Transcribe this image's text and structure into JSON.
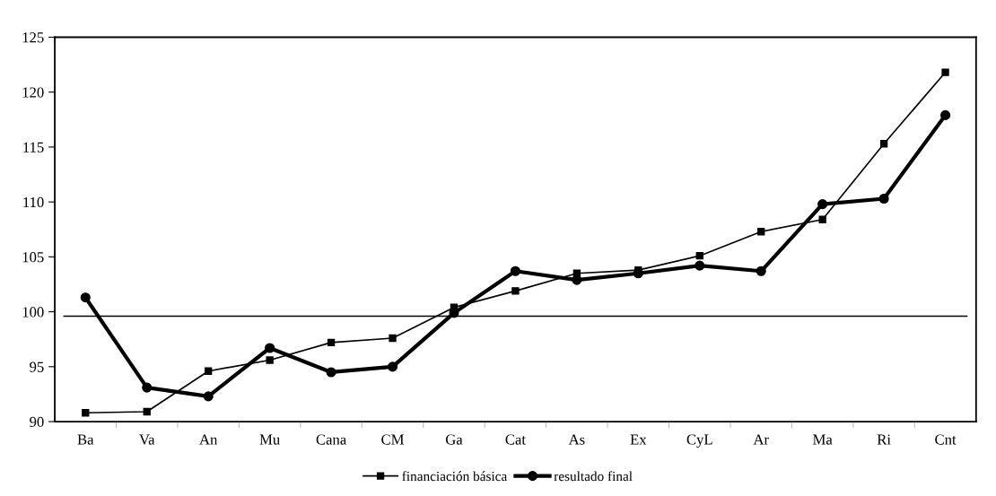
{
  "chart_data": {
    "type": "line",
    "categories": [
      "Ba",
      "Va",
      "An",
      "Mu",
      "Cana",
      "CM",
      "Ga",
      "Cat",
      "As",
      "Ex",
      "CyL",
      "Ar",
      "Ma",
      "Ri",
      "Cnt"
    ],
    "series": [
      {
        "name": "financiación básica",
        "color": "#000000",
        "marker": "square",
        "values": [
          90.8,
          90.9,
          94.6,
          95.6,
          97.2,
          97.6,
          100.4,
          101.9,
          103.5,
          103.8,
          105.1,
          107.3,
          108.4,
          115.3,
          121.8
        ]
      },
      {
        "name": "resultado final",
        "color": "#000000",
        "marker": "circle",
        "values": [
          101.3,
          93.1,
          92.3,
          96.7,
          94.5,
          95.0,
          99.9,
          103.7,
          102.9,
          103.5,
          104.2,
          103.7,
          109.8,
          110.3,
          117.9
        ]
      }
    ],
    "ylim": [
      90,
      125
    ],
    "yticks": [
      90,
      95,
      100,
      105,
      110,
      115,
      120,
      125
    ],
    "ref_lines": [
      {
        "axis": "y",
        "value": 99.6,
        "color": "#000000"
      }
    ],
    "grid": false,
    "legend": "bottom",
    "line_style": "solid"
  }
}
